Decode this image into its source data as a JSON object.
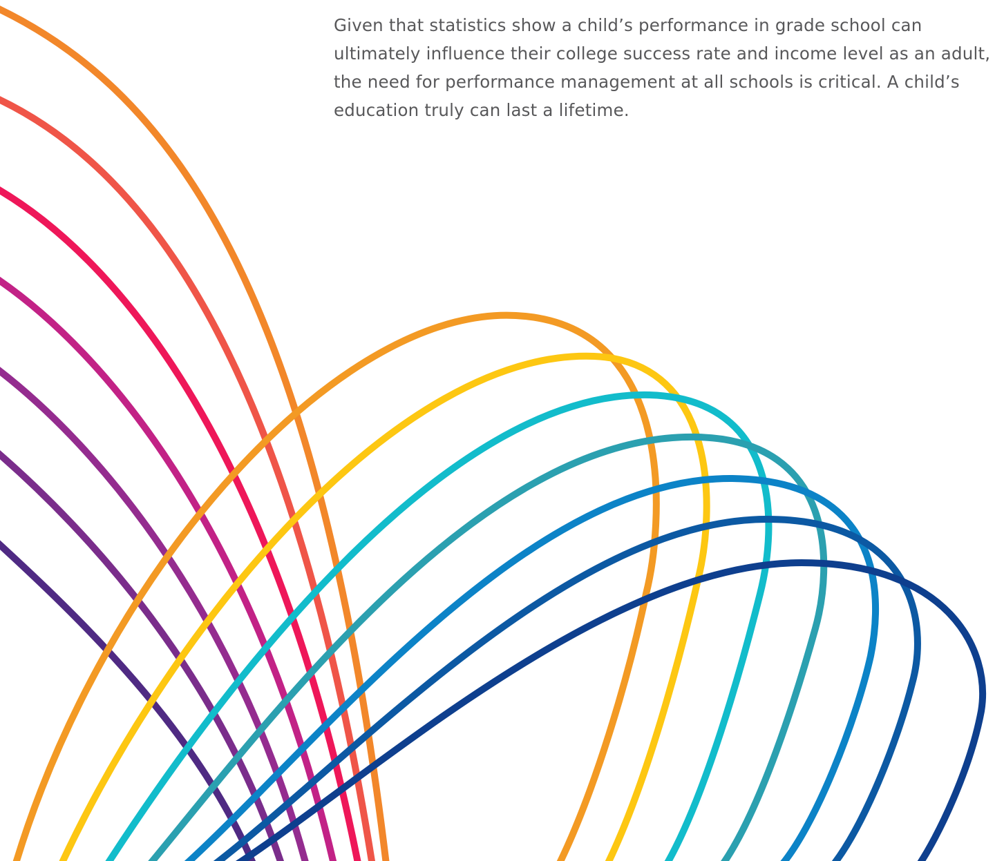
{
  "intro_text": "Given that statistics show a child’s performance in grade school can ultimately influence their college success rate and income level as an adult, the need for performance management at all schools is critical. A child’s education truly can last a lifetime.",
  "colors": {
    "text": "#58585a",
    "arcs": [
      "#f39a24",
      "#fdc712",
      "#12bccb",
      "#2ba0b0",
      "#0c83c7",
      "#0c59a3",
      "#0e3f8e"
    ],
    "curves": [
      "#f2872a",
      "#ef5548",
      "#ee1759",
      "#c22286",
      "#942c8f",
      "#7a2d8b",
      "#4f2a83"
    ]
  },
  "decoration": {
    "arc_count": 7,
    "curve_count": 7
  }
}
